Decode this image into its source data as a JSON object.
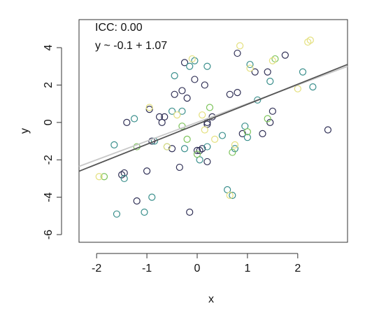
{
  "chart_data": {
    "type": "scatter",
    "annotations": [
      "ICC: 0.00",
      "y ~ -0.1 + 1.07"
    ],
    "xlabel": "x",
    "ylabel": "y",
    "xlim": [
      -2.35,
      2.99
    ],
    "ylim": [
      -6.41,
      5.5
    ],
    "xticks": [
      -2,
      -1,
      0,
      1,
      2
    ],
    "yticks": [
      -6,
      -4,
      -2,
      0,
      2,
      4
    ],
    "series": [
      {
        "color": "#2f2f55",
        "x": [
          -1.5,
          -1.45,
          -1.4,
          -0.95,
          -0.75,
          -0.7,
          -0.65,
          -0.5,
          -0.45,
          -0.35,
          -0.3,
          -0.25,
          -0.2,
          -0.15,
          -0.05,
          0.05,
          0.1,
          0.15,
          0.2,
          0.2,
          0.3,
          0.65,
          0.8,
          0.8,
          1.15,
          1.3,
          1.4,
          1.45,
          1.5,
          1.75,
          2.6,
          -1.2,
          -1.0,
          -0.9,
          0.2,
          0.0,
          0.9
        ],
        "y": [
          -2.8,
          -2.7,
          0,
          0.7,
          0.3,
          0,
          0.3,
          -1.4,
          1.5,
          -2.4,
          1.7,
          3.2,
          1.3,
          -4.8,
          2.3,
          -1.5,
          -1.4,
          2,
          -2.1,
          -0.1,
          0.3,
          1.5,
          1.6,
          3.7,
          2.7,
          -0.6,
          2.7,
          0,
          0.6,
          3.6,
          -0.4,
          -4.2,
          -2.6,
          -1,
          0,
          -1.5,
          -0.6
        ]
      },
      {
        "color": "#3a8f8c",
        "x": [
          -1.6,
          -1.45,
          -1.25,
          -1.05,
          -0.9,
          -0.85,
          -0.6,
          -0.5,
          -0.45,
          -0.3,
          -0.25,
          -0.15,
          -0.05,
          0.2,
          0.2,
          0.5,
          0.6,
          0.7,
          0.75,
          0.95,
          1.0,
          1.05,
          1.2,
          1.45,
          2.1,
          2.3,
          -1.65,
          0.05
        ],
        "y": [
          -4.9,
          -3,
          0.2,
          -4.8,
          -4,
          -1,
          -1.3,
          0.6,
          2.5,
          0.6,
          -1.4,
          3,
          3.3,
          3,
          -1.3,
          -0.7,
          -3.6,
          -3.9,
          -1.4,
          -0.2,
          -0.8,
          3.1,
          1.2,
          2.2,
          2.7,
          1.9,
          -1.2,
          -2.0
        ]
      },
      {
        "color": "#7cc35a",
        "x": [
          -1.85,
          -1.2,
          0.7,
          1.0,
          -0.2,
          0.25,
          1.4,
          1.55,
          -0.3,
          0.0
        ],
        "y": [
          -2.9,
          -1.3,
          -1.6,
          -0.5,
          -0.9,
          0.8,
          0.2,
          3.4,
          -0.2,
          -1.7
        ]
      },
      {
        "color": "#e4e07e",
        "x": [
          -1.95,
          -0.95,
          -0.1,
          0.1,
          0.15,
          0.75,
          0.85,
          1.05,
          1.5,
          2.0,
          2.2,
          2.25,
          0.65,
          -0.6,
          -0.4,
          0.35
        ],
        "y": [
          -2.9,
          0.8,
          3.4,
          0.4,
          -0.4,
          -1.2,
          4.1,
          2.9,
          3.3,
          1.8,
          4.3,
          4.4,
          -3.9,
          -1.3,
          0.4,
          -0.9
        ]
      }
    ],
    "lines": [
      {
        "color": "#c8c8c8",
        "x": [
          -2.35,
          2.99
        ],
        "y": [
          -2.35,
          3.0
        ]
      },
      {
        "color": "#555555",
        "x": [
          -2.35,
          2.99
        ],
        "y": [
          -2.61,
          3.1
        ]
      }
    ]
  }
}
